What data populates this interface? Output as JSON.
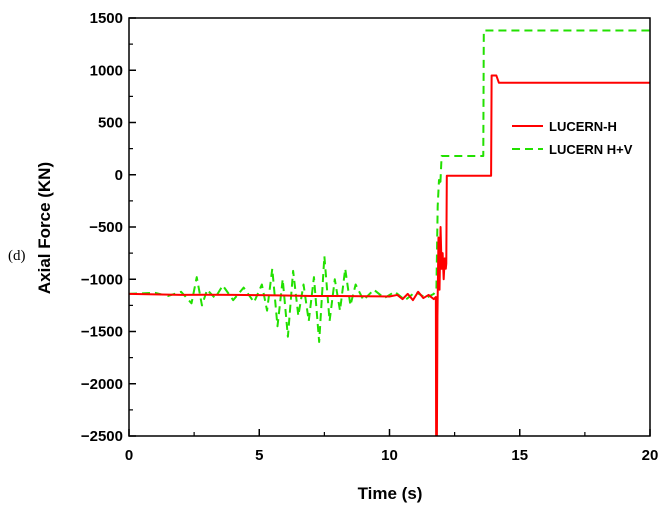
{
  "panel_label": "(d)",
  "chart_data": {
    "type": "line",
    "xlabel": "Time (s)",
    "ylabel": "Axial Force (KN)",
    "xlim": [
      0,
      20
    ],
    "ylim": [
      -2500,
      1500
    ],
    "xticks": [
      0,
      5,
      10,
      15,
      20
    ],
    "yticks": [
      -2500,
      -2000,
      -1500,
      -1000,
      -500,
      0,
      500,
      1000,
      1500
    ],
    "legend_position": "right-middle",
    "grid": false,
    "series": [
      {
        "name": "LUCERN-H",
        "color": "#ff0000",
        "style": "solid",
        "points": [
          [
            0,
            -1140
          ],
          [
            1,
            -1145
          ],
          [
            2,
            -1150
          ],
          [
            3,
            -1148
          ],
          [
            4,
            -1150
          ],
          [
            5,
            -1152
          ],
          [
            6,
            -1155
          ],
          [
            7,
            -1160
          ],
          [
            8,
            -1160
          ],
          [
            9,
            -1163
          ],
          [
            10,
            -1165
          ],
          [
            10.3,
            -1150
          ],
          [
            10.5,
            -1190
          ],
          [
            10.7,
            -1140
          ],
          [
            10.9,
            -1200
          ],
          [
            11.1,
            -1120
          ],
          [
            11.3,
            -1180
          ],
          [
            11.5,
            -1150
          ],
          [
            11.7,
            -1190
          ],
          [
            11.78,
            -1170
          ],
          [
            11.79,
            -2500
          ],
          [
            11.82,
            -2500
          ],
          [
            11.84,
            -1350
          ],
          [
            11.88,
            -600
          ],
          [
            11.92,
            -1100
          ],
          [
            11.96,
            -500
          ],
          [
            12.0,
            -900
          ],
          [
            12.04,
            -750
          ],
          [
            12.08,
            -1000
          ],
          [
            12.12,
            -800
          ],
          [
            12.16,
            -900
          ],
          [
            12.18,
            -850
          ],
          [
            12.2,
            -10
          ],
          [
            13.9,
            -10
          ],
          [
            13.92,
            950
          ],
          [
            14.1,
            950
          ],
          [
            14.2,
            880
          ],
          [
            20,
            880
          ]
        ]
      },
      {
        "name": "LUCERN H+V",
        "color": "#22e000",
        "style": "dashed",
        "points": [
          [
            0,
            -1140
          ],
          [
            1,
            -1130
          ],
          [
            1.5,
            -1160
          ],
          [
            2,
            -1120
          ],
          [
            2.4,
            -1230
          ],
          [
            2.6,
            -980
          ],
          [
            2.8,
            -1250
          ],
          [
            3.0,
            -1100
          ],
          [
            3.3,
            -1180
          ],
          [
            3.6,
            -1060
          ],
          [
            4.0,
            -1200
          ],
          [
            4.4,
            -1080
          ],
          [
            4.8,
            -1220
          ],
          [
            5.1,
            -1050
          ],
          [
            5.3,
            -1300
          ],
          [
            5.5,
            -900
          ],
          [
            5.7,
            -1450
          ],
          [
            5.9,
            -1000
          ],
          [
            6.1,
            -1550
          ],
          [
            6.3,
            -920
          ],
          [
            6.5,
            -1350
          ],
          [
            6.7,
            -1050
          ],
          [
            6.9,
            -1400
          ],
          [
            7.1,
            -980
          ],
          [
            7.3,
            -1600
          ],
          [
            7.5,
            -780
          ],
          [
            7.7,
            -1400
          ],
          [
            7.9,
            -1000
          ],
          [
            8.1,
            -1300
          ],
          [
            8.3,
            -900
          ],
          [
            8.5,
            -1250
          ],
          [
            8.7,
            -1050
          ],
          [
            9.0,
            -1200
          ],
          [
            9.4,
            -1100
          ],
          [
            9.8,
            -1180
          ],
          [
            10.2,
            -1120
          ],
          [
            10.6,
            -1200
          ],
          [
            11.0,
            -1120
          ],
          [
            11.4,
            -1180
          ],
          [
            11.7,
            -1140
          ],
          [
            11.8,
            -1100
          ],
          [
            11.85,
            -300
          ],
          [
            11.9,
            -50
          ],
          [
            11.95,
            -100
          ],
          [
            12.0,
            180
          ],
          [
            13.6,
            180
          ],
          [
            13.62,
            1380
          ],
          [
            20,
            1380
          ]
        ]
      }
    ]
  }
}
